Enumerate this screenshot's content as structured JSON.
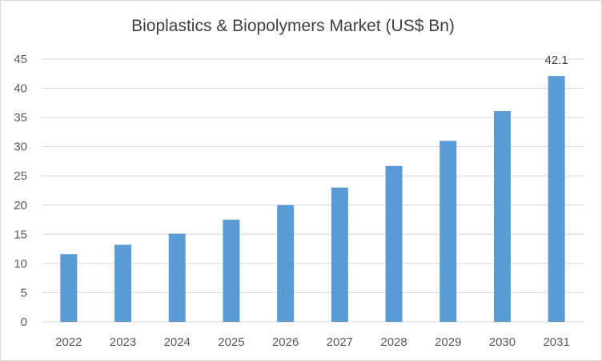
{
  "chart_data": {
    "type": "bar",
    "title": "Bioplastics & Biopolymers Market (US$ Bn)",
    "xlabel": "",
    "ylabel": "",
    "categories": [
      "2022",
      "2023",
      "2024",
      "2025",
      "2026",
      "2027",
      "2028",
      "2029",
      "2030",
      "2031"
    ],
    "values": [
      11.6,
      13.2,
      15.1,
      17.5,
      20.0,
      23.0,
      26.7,
      31.0,
      36.1,
      42.1
    ],
    "ylim": [
      0,
      45
    ],
    "yticks": [
      0,
      5,
      10,
      15,
      20,
      25,
      30,
      35,
      40,
      45
    ],
    "grid": true,
    "legend": "none",
    "data_labels": [
      {
        "category": "2031",
        "text": "42.1"
      }
    ],
    "colors": {
      "bar": "#5b9bd5",
      "grid": "#d9d9d9",
      "text": "#595959"
    }
  }
}
